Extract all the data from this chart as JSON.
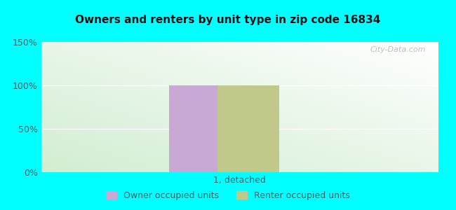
{
  "title": "Owners and renters by unit type in zip code 16834",
  "categories": [
    "1, detached"
  ],
  "owner_values": [
    100
  ],
  "renter_values": [
    100
  ],
  "owner_color": "#c9a8d4",
  "renter_color": "#c0c88a",
  "ylim": [
    0,
    150
  ],
  "yticks": [
    0,
    50,
    100,
    150
  ],
  "ytick_labels": [
    "0%",
    "50%",
    "100%",
    "150%"
  ],
  "tick_color": "#336666",
  "title_color": "#111111",
  "background_outer": "#00ffff",
  "watermark": "City-Data.com",
  "legend_owner": "Owner occupied units",
  "legend_renter": "Renter occupied units"
}
